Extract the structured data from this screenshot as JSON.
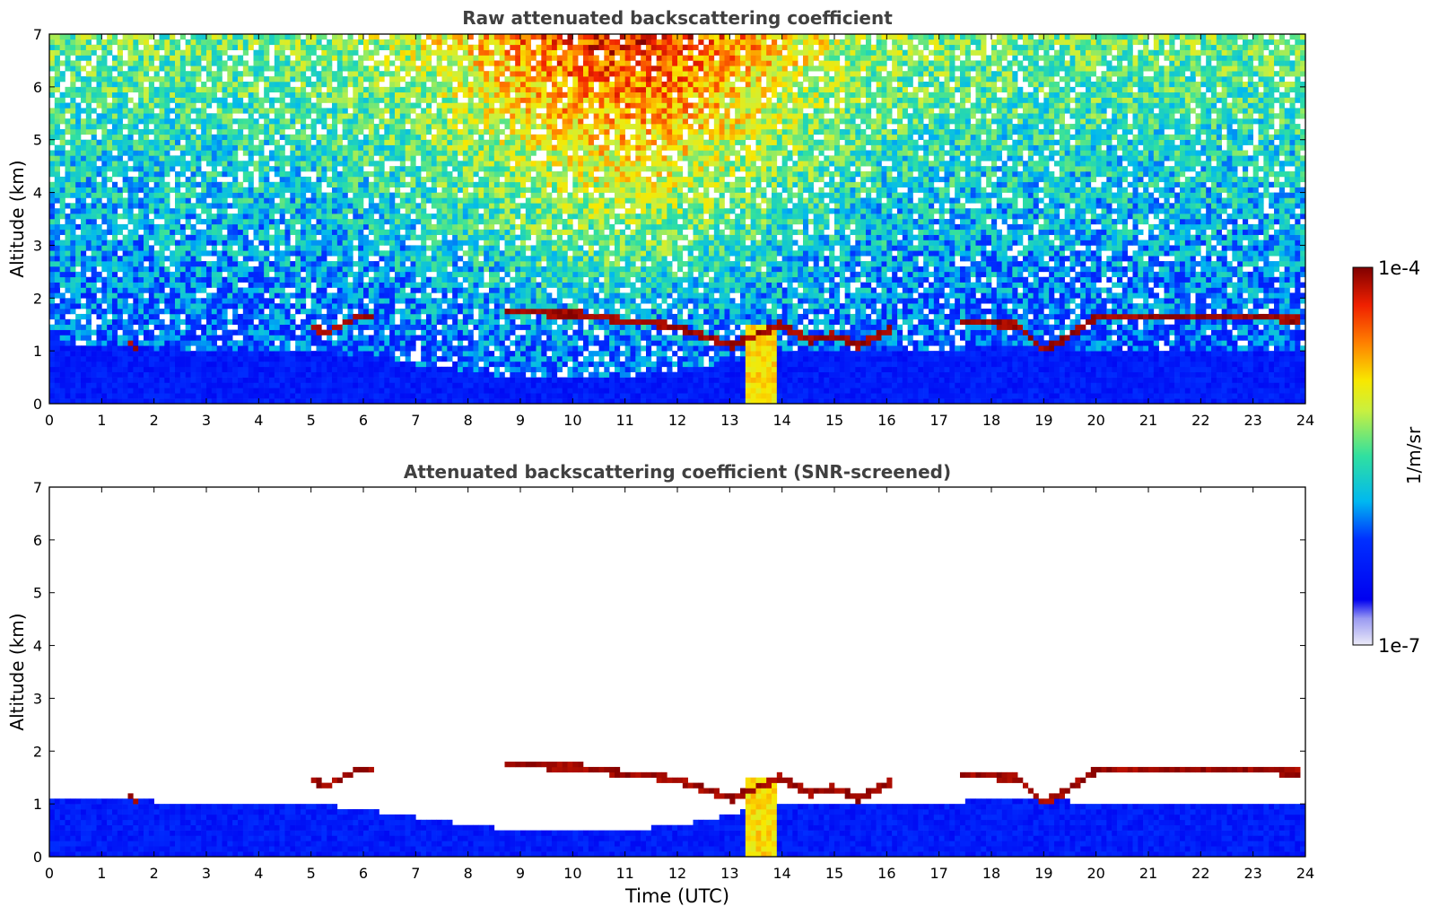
{
  "chart_data": [
    {
      "type": "heatmap",
      "title": "Raw attenuated backscattering coefficient",
      "xlabel": "",
      "ylabel": "Altitude (km)",
      "xlim": [
        0,
        24
      ],
      "ylim": [
        0,
        7
      ],
      "xticks": [
        "0",
        "1",
        "2",
        "3",
        "4",
        "5",
        "6",
        "7",
        "8",
        "9",
        "10",
        "11",
        "12",
        "13",
        "14",
        "15",
        "16",
        "17",
        "18",
        "19",
        "20",
        "21",
        "22",
        "23",
        "24"
      ],
      "yticks": [
        "0",
        "1",
        "2",
        "3",
        "4",
        "5",
        "6",
        "7"
      ],
      "cloud_layer": {
        "x": [
          1.5,
          1.7,
          2.0,
          5.0,
          5.3,
          5.6,
          5.9,
          6.1,
          8.7,
          9.0,
          9.5,
          10.0,
          10.5,
          11.0,
          11.5,
          12.0,
          12.5,
          13.0,
          13.5,
          14.0,
          14.5,
          15.0,
          15.5,
          16.0,
          17.5,
          18.5,
          19.0,
          19.5,
          20.0,
          21.0,
          22.0,
          23.0,
          23.9
        ],
        "y": [
          1.2,
          1.0,
          null,
          1.45,
          1.35,
          1.5,
          1.65,
          1.65,
          1.75,
          1.72,
          1.72,
          1.7,
          1.65,
          1.55,
          1.55,
          1.45,
          1.3,
          1.1,
          1.3,
          1.5,
          1.2,
          1.3,
          1.1,
          1.4,
          1.55,
          1.5,
          1.0,
          1.3,
          1.65,
          1.62,
          1.65,
          1.65,
          1.6
        ]
      },
      "notes_shown": "dense noise above ~2 km, peaking around 10-13 UTC at 5-7 km; strong precipitation column ~13.3-13.9 UTC below 1.5 km"
    },
    {
      "type": "heatmap",
      "title": "Attenuated backscattering coefficient (SNR-screened)",
      "xlabel": "Time (UTC)",
      "ylabel": "Altitude (km)",
      "xlim": [
        0,
        24
      ],
      "ylim": [
        0,
        7
      ],
      "xticks": [
        "0",
        "1",
        "2",
        "3",
        "4",
        "5",
        "6",
        "7",
        "8",
        "9",
        "10",
        "11",
        "12",
        "13",
        "14",
        "15",
        "16",
        "17",
        "18",
        "19",
        "20",
        "21",
        "22",
        "23",
        "24"
      ],
      "yticks": [
        "0",
        "1",
        "2",
        "3",
        "4",
        "5",
        "6",
        "7"
      ],
      "boundary_layer_top": {
        "x": [
          0,
          1,
          2,
          3,
          4,
          5,
          6,
          7,
          8,
          9,
          10,
          11,
          12,
          13,
          14,
          15,
          16,
          17,
          18,
          19,
          20,
          21,
          22,
          23,
          24
        ],
        "y": [
          1.1,
          1.1,
          1.05,
          1.0,
          0.95,
          1.0,
          0.9,
          0.75,
          0.6,
          0.5,
          0.55,
          0.5,
          0.6,
          0.8,
          1.0,
          1.0,
          1.0,
          1.0,
          1.1,
          1.1,
          1.0,
          1.0,
          1.05,
          1.05,
          1.05
        ]
      }
    }
  ],
  "colorbar": {
    "max_label": "1e-4",
    "min_label": "1e-7",
    "unit_label": "1/m/sr",
    "scale": "log"
  }
}
